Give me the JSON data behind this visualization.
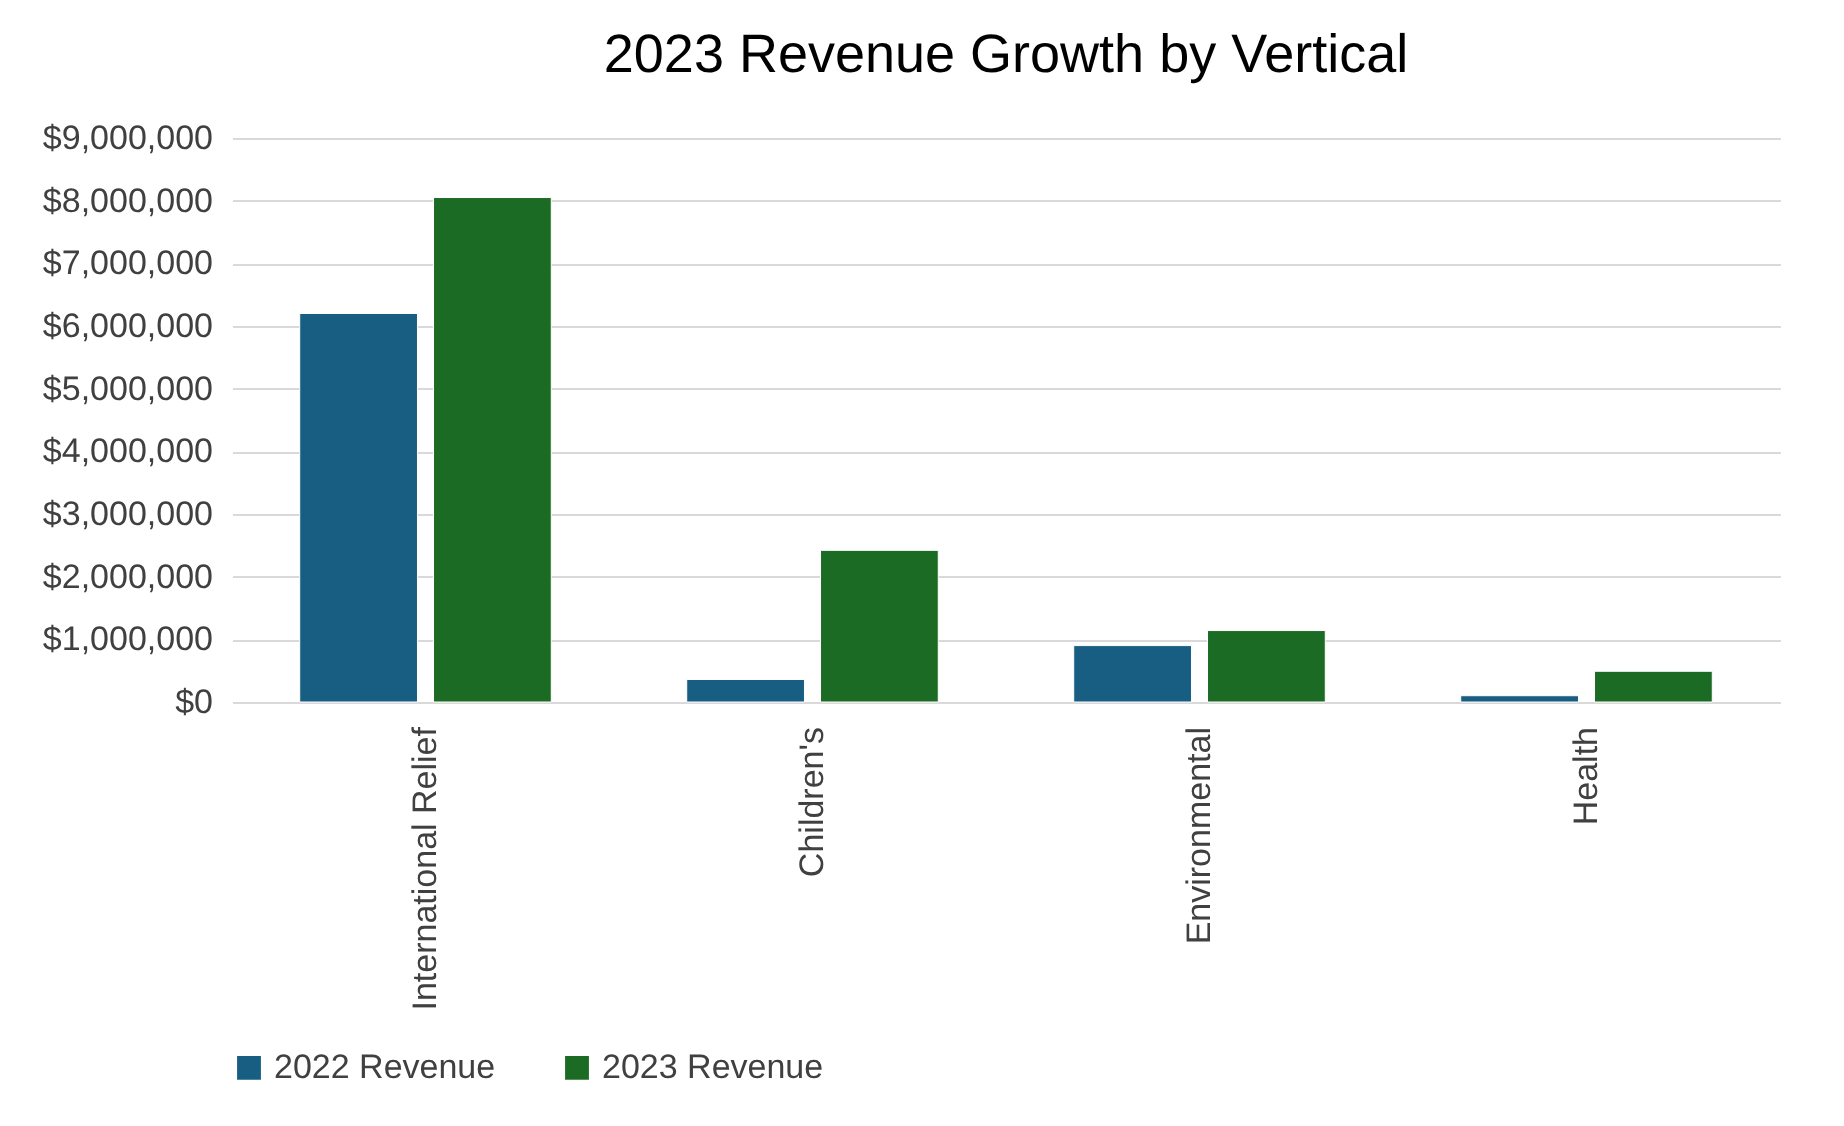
{
  "chart_data": {
    "type": "bar",
    "title": "2023 Revenue Growth by Vertical",
    "categories": [
      "International Relief",
      "Children's",
      "Environmental",
      "Health"
    ],
    "series": [
      {
        "name": "2022 Revenue",
        "color": "#175e82",
        "values": [
          6200000,
          360000,
          900000,
          100000
        ]
      },
      {
        "name": "2023 Revenue",
        "color": "#1c6b24",
        "values": [
          8050000,
          2420000,
          1140000,
          490000
        ]
      }
    ],
    "ylim": [
      0,
      9000000
    ],
    "yticks": [
      {
        "value": 0,
        "label": "$0"
      },
      {
        "value": 1000000,
        "label": "$1,000,000"
      },
      {
        "value": 2000000,
        "label": "$2,000,000"
      },
      {
        "value": 3000000,
        "label": "$3,000,000"
      },
      {
        "value": 4000000,
        "label": "$4,000,000"
      },
      {
        "value": 5000000,
        "label": "$5,000,000"
      },
      {
        "value": 6000000,
        "label": "$6,000,000"
      },
      {
        "value": 7000000,
        "label": "$7,000,000"
      },
      {
        "value": 8000000,
        "label": "$8,000,000"
      },
      {
        "value": 9000000,
        "label": "$9,000,000"
      }
    ],
    "grid": "y",
    "legend": "bottom"
  }
}
